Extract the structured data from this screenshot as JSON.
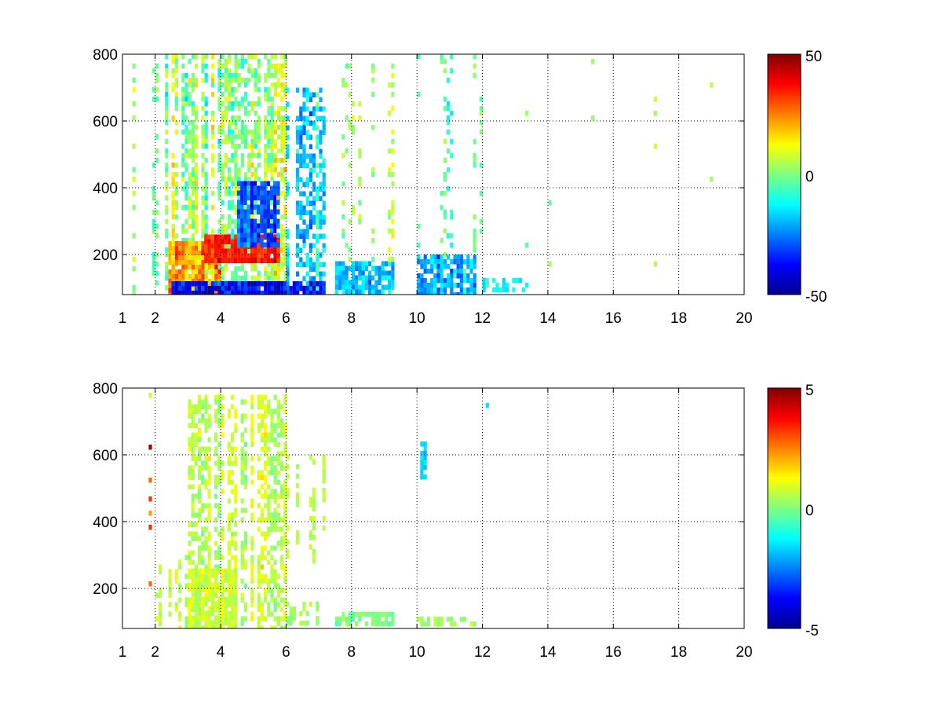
{
  "colormap": "jet",
  "colormap_stops": [
    "#00008f",
    "#0000ff",
    "#00ffff",
    "#ffff00",
    "#ff0000",
    "#800000"
  ],
  "chart_data": [
    {
      "type": "heatmap",
      "title": "",
      "xlabel": "",
      "ylabel": "",
      "xlim": [
        1,
        20
      ],
      "ylim": [
        80,
        800
      ],
      "x_ticks": [
        1,
        2,
        4,
        6,
        8,
        10,
        12,
        14,
        16,
        18,
        20
      ],
      "x_tick_labels": [
        "1",
        "2",
        "4",
        "6",
        "8",
        "10",
        "12",
        "14",
        "16",
        "18",
        "20"
      ],
      "y_ticks": [
        200,
        400,
        600,
        800
      ],
      "y_tick_labels": [
        "200",
        "400",
        "600",
        "800"
      ],
      "grid": true,
      "colorbar": {
        "min": -50,
        "max": 50,
        "ticks": [
          -50,
          0,
          50
        ],
        "tick_labels": [
          "-50",
          "0",
          "50"
        ]
      },
      "regions": [
        {
          "x": [
            1.0,
            2.2
          ],
          "y": [
            80,
            800
          ],
          "density": 0.32,
          "mean": 0,
          "spread": 14
        },
        {
          "x": [
            2.2,
            6.0
          ],
          "y": [
            80,
            800
          ],
          "density": 0.62,
          "mean": 2,
          "spread": 18
        },
        {
          "x": [
            2.4,
            4.0
          ],
          "y": [
            80,
            240
          ],
          "density": 0.9,
          "mean": 20,
          "spread": 18
        },
        {
          "x": [
            3.5,
            5.8
          ],
          "y": [
            180,
            260
          ],
          "density": 0.9,
          "mean": 36,
          "spread": 10
        },
        {
          "x": [
            4.5,
            5.8
          ],
          "y": [
            230,
            420
          ],
          "density": 0.85,
          "mean": -30,
          "spread": 14
        },
        {
          "x": [
            2.5,
            6.0
          ],
          "y": [
            85,
            120
          ],
          "density": 0.95,
          "mean": -40,
          "spread": 20
        },
        {
          "x": [
            6.0,
            7.2
          ],
          "y": [
            80,
            700
          ],
          "density": 0.55,
          "mean": -15,
          "spread": 15
        },
        {
          "x": [
            6.0,
            7.2
          ],
          "y": [
            85,
            120
          ],
          "density": 0.9,
          "mean": -35,
          "spread": 15
        },
        {
          "x": [
            7.5,
            9.3
          ],
          "y": [
            80,
            180
          ],
          "density": 0.8,
          "mean": -18,
          "spread": 14
        },
        {
          "x": [
            7.5,
            9.3
          ],
          "y": [
            180,
            800
          ],
          "density": 0.18,
          "mean": 2,
          "spread": 12
        },
        {
          "x": [
            10.0,
            11.8
          ],
          "y": [
            80,
            200
          ],
          "density": 0.75,
          "mean": -20,
          "spread": 14
        },
        {
          "x": [
            10.0,
            12.0
          ],
          "y": [
            200,
            800
          ],
          "density": 0.2,
          "mean": -4,
          "spread": 10
        },
        {
          "x": [
            12.0,
            13.5
          ],
          "y": [
            90,
            130
          ],
          "density": 0.55,
          "mean": -12,
          "spread": 8
        },
        {
          "x": [
            12.0,
            20.0
          ],
          "y": [
            80,
            800
          ],
          "density": 0.07,
          "mean": 2,
          "spread": 8
        }
      ]
    },
    {
      "type": "heatmap",
      "title": "",
      "xlabel": "",
      "ylabel": "",
      "xlim": [
        1,
        20
      ],
      "ylim": [
        80,
        800
      ],
      "x_ticks": [
        1,
        2,
        4,
        6,
        8,
        10,
        12,
        14,
        16,
        18,
        20
      ],
      "x_tick_labels": [
        "1",
        "2",
        "4",
        "6",
        "8",
        "10",
        "12",
        "14",
        "16",
        "18",
        "20"
      ],
      "y_ticks": [
        200,
        400,
        600,
        800
      ],
      "y_tick_labels": [
        "200",
        "400",
        "600",
        "800"
      ],
      "grid": true,
      "colorbar": {
        "min": -5,
        "max": 5,
        "ticks": [
          -5,
          0,
          5
        ],
        "tick_labels": [
          "-5",
          "0",
          "5"
        ]
      },
      "regions": [
        {
          "x": [
            1.7,
            1.9
          ],
          "y": [
            200,
            800
          ],
          "density": 0.15,
          "mean": 0,
          "spread": 4
        },
        {
          "x": [
            2.0,
            3.0
          ],
          "y": [
            80,
            300
          ],
          "density": 0.35,
          "mean": 0.5,
          "spread": 0.7
        },
        {
          "x": [
            3.0,
            6.0
          ],
          "y": [
            80,
            780
          ],
          "density": 0.55,
          "mean": 0.6,
          "spread": 0.9
        },
        {
          "x": [
            3.0,
            4.5
          ],
          "y": [
            80,
            260
          ],
          "density": 0.8,
          "mean": 0.8,
          "spread": 0.6
        },
        {
          "x": [
            6.0,
            7.2
          ],
          "y": [
            280,
            600
          ],
          "density": 0.45,
          "mean": 0.6,
          "spread": 0.5
        },
        {
          "x": [
            6.0,
            7.0
          ],
          "y": [
            90,
            160
          ],
          "density": 0.6,
          "mean": 0.4,
          "spread": 0.5
        },
        {
          "x": [
            7.5,
            9.3
          ],
          "y": [
            90,
            130
          ],
          "density": 0.75,
          "mean": 0,
          "spread": 0.6
        },
        {
          "x": [
            10.1,
            10.3
          ],
          "y": [
            540,
            640
          ],
          "density": 0.7,
          "mean": -1.5,
          "spread": 0.8
        },
        {
          "x": [
            10.0,
            11.8
          ],
          "y": [
            90,
            115
          ],
          "density": 0.7,
          "mean": 0.3,
          "spread": 0.4
        },
        {
          "x": [
            12.0,
            12.2
          ],
          "y": [
            750,
            770
          ],
          "density": 0.5,
          "mean": -1.5,
          "spread": 0.5
        }
      ]
    }
  ]
}
